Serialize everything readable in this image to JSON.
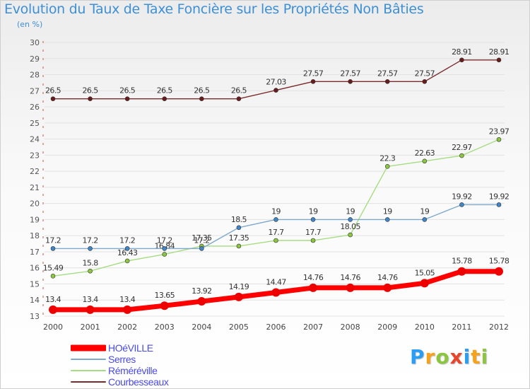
{
  "header": {
    "title": "Evolution du Taux de Taxe Foncière sur les Propriétés Non Bâties",
    "subtitle": "(en %)"
  },
  "logo": {
    "text": "Proxiti",
    "letter_colors": [
      "#2a9df4",
      "#f7a21b",
      "#8cc63f",
      "#e8452c",
      "#2a9df4",
      "#f7a21b",
      "#8cc63f"
    ]
  },
  "chart_data": {
    "type": "line",
    "x": [
      "2000",
      "2001",
      "2002",
      "2003",
      "2004",
      "2005",
      "2006",
      "2007",
      "2008",
      "2009",
      "2010",
      "2011",
      "2012"
    ],
    "ylim": [
      13,
      30
    ],
    "y_ticks": [
      "13",
      "14",
      "15",
      "16",
      "17",
      "18",
      "19",
      "20",
      "21",
      "22",
      "23",
      "24",
      "25",
      "26",
      "27",
      "28",
      "29",
      "30"
    ],
    "grid": "horizontal",
    "legend_position": "bottom-left",
    "series": [
      {
        "name": "Courbesseaux",
        "color": "#7a2b2b",
        "marker_color": "#6a1c1c",
        "emphasis": false,
        "values": [
          26.5,
          26.5,
          26.5,
          26.5,
          26.5,
          26.5,
          27.03,
          27.57,
          27.57,
          27.57,
          27.57,
          28.91,
          28.91
        ],
        "labels": [
          "26.5",
          "26.5",
          "26.5",
          "26.5",
          "26.5",
          "26.5",
          "27.03",
          "27.57",
          "27.57",
          "27.57",
          "27.57",
          "28.91",
          "28.91"
        ]
      },
      {
        "name": "Réméréville",
        "color": "#a6dc82",
        "marker_color": "#8cc63f",
        "emphasis": false,
        "values": [
          15.49,
          15.8,
          16.43,
          16.84,
          17.35,
          17.35,
          17.7,
          17.7,
          18.05,
          22.3,
          22.63,
          22.97,
          23.97
        ],
        "labels": [
          "15.49",
          "15.8",
          "16.43",
          "16.84",
          "17.35",
          "17.35",
          "17.7",
          "17.7",
          "18.05",
          "22.3",
          "22.63",
          "22.97",
          "23.97"
        ]
      },
      {
        "name": "Serres",
        "color": "#7fa9cc",
        "marker_color": "#3f86c8",
        "emphasis": false,
        "values": [
          17.2,
          17.2,
          17.2,
          17.2,
          17.2,
          18.5,
          19,
          19,
          19,
          19,
          19,
          19.92,
          19.92
        ],
        "labels": [
          "17.2",
          "17.2",
          "17.2",
          "17.2",
          "17.2",
          "18.5",
          "19",
          "19",
          "19",
          "19",
          "19",
          "19.92",
          "19.92"
        ]
      },
      {
        "name": "HOéVILLE",
        "color": "#ff0000",
        "marker_color": "#ee0000",
        "emphasis": true,
        "values": [
          13.4,
          13.4,
          13.4,
          13.65,
          13.92,
          14.19,
          14.47,
          14.76,
          14.76,
          14.76,
          15.05,
          15.78,
          15.78
        ],
        "labels": [
          "13.4",
          "13.4",
          "13.4",
          "13.65",
          "13.92",
          "14.19",
          "14.47",
          "14.76",
          "14.76",
          "14.76",
          "15.05",
          "15.78",
          "15.78"
        ]
      }
    ]
  },
  "legend": {
    "items": [
      {
        "label": "HOéVILLE",
        "color": "#ff0000",
        "thick": true
      },
      {
        "label": "Serres",
        "color": "#7fa9cc",
        "thick": false
      },
      {
        "label": "Réméréville",
        "color": "#a6dc82",
        "thick": false
      },
      {
        "label": "Courbesseaux",
        "color": "#7a2b2b",
        "thick": false
      }
    ]
  }
}
